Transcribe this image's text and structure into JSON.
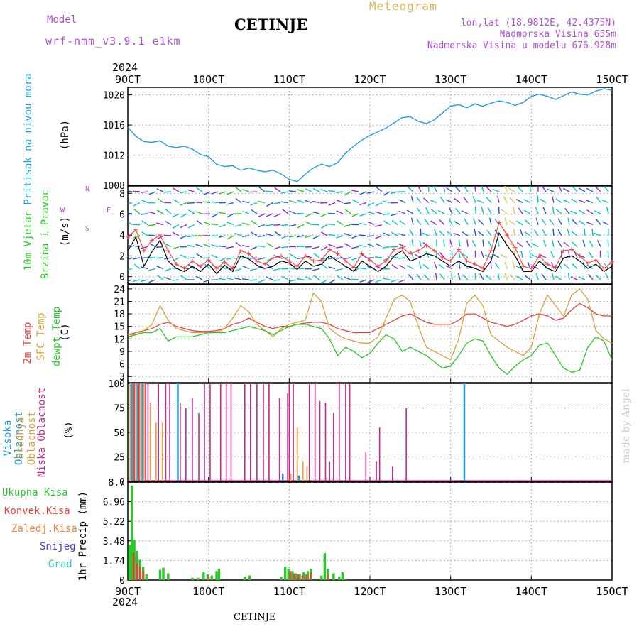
{
  "header": {
    "model_label": "Model",
    "model_name": "wrf-nmm_v3.9.1 e1km",
    "title": "CETINJE",
    "meteogram": "Meteogram",
    "lonlat": "lon,lat (18.9812E, 42.4375N)",
    "elevation": "Nadmorska Visina 655m",
    "model_elevation": "Nadmorska Visina u modelu 676.928m"
  },
  "footer": {
    "station": "CETINJE",
    "watermark": "made by Angel"
  },
  "colors": {
    "pressure": "#1ea0e6",
    "wind_green": "#28c828",
    "wind_cyan": "#00c8c8",
    "wind_blue": "#1e5adc",
    "wind_purple": "#8c28e6",
    "wind_yellow": "#d2c850",
    "wind_speed": "#000000",
    "gust": "#ff3c3c",
    "temp2m": "#f03c3c",
    "sfc_temp": "#dca03c",
    "dewpt": "#28c828",
    "cloud_high": "#1ea0e6",
    "cloud_mid": "#e6a03c",
    "cloud_low": "#c8288c",
    "rain_total": "#28c828",
    "rain_conv": "#f03c3c",
    "rain_frozen": "#f0823c",
    "snow": "#3c3ce6",
    "hail": "#28c8c8"
  },
  "chart_data": [
    {
      "type": "line",
      "title": "Pritisak na nivou mora",
      "ylabel": "(hPa)",
      "ylim": [
        1008,
        1021
      ],
      "yticks": [
        "1008",
        "1012",
        "1016",
        "1020"
      ],
      "top_axis_year": "2024",
      "x_ticks": [
        "9OCT",
        "10OCT",
        "11OCT",
        "12OCT",
        "13OCT",
        "14OCT",
        "15OCT"
      ],
      "grid": true,
      "x": [
        9.0,
        9.1,
        9.2,
        9.3,
        9.4,
        9.5,
        9.6,
        9.7,
        9.8,
        9.9,
        10.0,
        10.1,
        10.2,
        10.3,
        10.4,
        10.5,
        10.6,
        10.7,
        10.8,
        10.9,
        11.0,
        11.1,
        11.2,
        11.3,
        11.4,
        11.5,
        11.6,
        11.7,
        11.8,
        11.9,
        12.0,
        12.1,
        12.2,
        12.3,
        12.4,
        12.5,
        12.6,
        12.7,
        12.8,
        12.9,
        13.0,
        13.1,
        13.2,
        13.3,
        13.4,
        13.5,
        13.6,
        13.7,
        13.8,
        13.9,
        14.0,
        14.1,
        14.2,
        14.3,
        14.4,
        14.5,
        14.6,
        14.7,
        14.8,
        14.9,
        15.0
      ],
      "series": [
        {
          "name": "Pritisak na nivou mora",
          "values": [
            1015.7,
            1014.5,
            1013.8,
            1013.7,
            1013.9,
            1013.2,
            1013.0,
            1013.2,
            1012.8,
            1012.1,
            1011.8,
            1010.8,
            1010.5,
            1010.6,
            1010.0,
            1010.3,
            1010.0,
            1009.8,
            1010.0,
            1009.5,
            1008.8,
            1008.5,
            1009.5,
            1010.3,
            1010.8,
            1010.5,
            1011.0,
            1012.3,
            1013.2,
            1014.0,
            1014.6,
            1015.1,
            1015.6,
            1016.3,
            1017.0,
            1017.1,
            1016.5,
            1016.2,
            1016.7,
            1017.6,
            1018.5,
            1018.7,
            1018.3,
            1018.8,
            1018.5,
            1018.9,
            1019.2,
            1019.0,
            1018.6,
            1019.0,
            1019.8,
            1020.1,
            1019.8,
            1019.4,
            1019.9,
            1020.4,
            1020.1,
            1020.0,
            1020.5,
            1020.8,
            1020.6
          ]
        }
      ]
    },
    {
      "type": "line",
      "title": "10m Vjetar Brzina i Pravac",
      "series_labels": [
        "10m Vjetar",
        "Brzina i Pravac"
      ],
      "ylabel": "(m/s)",
      "ylim": [
        -0.7,
        8.7
      ],
      "yticks": [
        "0",
        "2",
        "4",
        "6",
        "8"
      ],
      "compass": [
        "N",
        "W",
        "E",
        "S"
      ],
      "x": [
        9.0,
        9.1,
        9.2,
        9.3,
        9.4,
        9.5,
        9.6,
        9.7,
        9.8,
        9.9,
        10.0,
        10.1,
        10.2,
        10.3,
        10.4,
        10.5,
        10.6,
        10.7,
        10.8,
        10.9,
        11.0,
        11.1,
        11.2,
        11.3,
        11.4,
        11.5,
        11.6,
        11.7,
        11.8,
        11.9,
        12.0,
        12.1,
        12.2,
        12.3,
        12.4,
        12.5,
        12.6,
        12.7,
        12.8,
        12.9,
        13.0,
        13.1,
        13.2,
        13.3,
        13.4,
        13.5,
        13.6,
        13.7,
        13.8,
        13.9,
        14.0,
        14.1,
        14.2,
        14.3,
        14.4,
        14.5,
        14.6,
        14.7,
        14.8,
        14.9,
        15.0
      ],
      "series": [
        {
          "name": "speed",
          "values": [
            2.5,
            3.8,
            1.0,
            2.4,
            3.5,
            1.5,
            0.8,
            0.5,
            1.0,
            0.5,
            1.2,
            0.3,
            1.1,
            0.5,
            2.0,
            1.7,
            1.1,
            0.8,
            1.0,
            1.5,
            1.3,
            0.7,
            1.5,
            1.0,
            1.2,
            2.0,
            1.5,
            1.0,
            0.5,
            1.5,
            1.0,
            0.5,
            1.0,
            2.0,
            2.5,
            1.5,
            1.8,
            2.2,
            2.0,
            1.5,
            1.0,
            1.5,
            1.0,
            0.8,
            0.5,
            1.5,
            4.2,
            3.0,
            2.0,
            0.5,
            0.5,
            1.5,
            0.8,
            0.5,
            1.8,
            2.0,
            1.5,
            0.8,
            1.2,
            0.5,
            1.0
          ]
        },
        {
          "name": "gust",
          "values": [
            3.8,
            4.5,
            2.5,
            3.5,
            4.0,
            2.5,
            1.2,
            0.8,
            1.5,
            1.0,
            1.6,
            0.8,
            1.4,
            0.8,
            2.5,
            2.2,
            1.5,
            1.2,
            1.8,
            2.0,
            1.5,
            1.0,
            2.0,
            1.5,
            1.6,
            2.6,
            2.2,
            1.5,
            0.9,
            2.2,
            1.6,
            1.0,
            1.5,
            2.6,
            2.8,
            2.2,
            2.5,
            3.0,
            2.5,
            1.8,
            1.5,
            2.6,
            1.5,
            1.2,
            0.8,
            2.5,
            5.2,
            4.0,
            2.8,
            1.0,
            0.8,
            2.0,
            1.2,
            0.9,
            2.5,
            2.6,
            2.0,
            1.3,
            1.6,
            0.8,
            1.4
          ]
        }
      ]
    },
    {
      "type": "line",
      "title": "2m Temp / SFC Temp / dewpt Temp",
      "series_labels": [
        "2m Temp",
        "SFC Temp",
        "dewpt Temp"
      ],
      "ylabel": "(C)",
      "ylim": [
        1.5,
        25
      ],
      "yticks": [
        "3",
        "6",
        "9",
        "12",
        "15",
        "18",
        "21",
        "24"
      ],
      "x": [
        9.0,
        9.1,
        9.2,
        9.3,
        9.4,
        9.5,
        9.6,
        9.7,
        9.8,
        9.9,
        10.0,
        10.1,
        10.2,
        10.3,
        10.4,
        10.5,
        10.6,
        10.7,
        10.8,
        10.9,
        11.0,
        11.1,
        11.2,
        11.3,
        11.4,
        11.5,
        11.6,
        11.7,
        11.8,
        11.9,
        12.0,
        12.1,
        12.2,
        12.3,
        12.4,
        12.5,
        12.6,
        12.7,
        12.8,
        12.9,
        13.0,
        13.1,
        13.2,
        13.3,
        13.4,
        13.5,
        13.6,
        13.7,
        13.8,
        13.9,
        14.0,
        14.1,
        14.2,
        14.3,
        14.4,
        14.5,
        14.6,
        14.7,
        14.8,
        14.9,
        15.0
      ],
      "series": [
        {
          "name": "2m Temp",
          "values": [
            13.0,
            13.5,
            14.0,
            14.5,
            15.5,
            16.0,
            15.0,
            14.5,
            14.0,
            13.8,
            13.8,
            14.0,
            14.5,
            15.5,
            16.0,
            17.0,
            16.0,
            15.0,
            14.5,
            15.0,
            15.0,
            15.5,
            15.8,
            16.0,
            16.0,
            15.5,
            14.5,
            14.0,
            13.5,
            13.5,
            13.5,
            14.5,
            15.5,
            16.5,
            17.5,
            18.0,
            17.0,
            16.0,
            15.5,
            15.5,
            15.5,
            16.5,
            18.0,
            18.0,
            17.0,
            16.0,
            15.5,
            15.0,
            15.5,
            16.5,
            17.5,
            18.0,
            17.5,
            16.5,
            17.0,
            19.0,
            20.5,
            19.5,
            18.0,
            17.5,
            17.5
          ]
        },
        {
          "name": "SFC Temp",
          "values": [
            13.0,
            13.0,
            14.0,
            15.5,
            20.0,
            16.5,
            14.5,
            14.0,
            13.5,
            13.5,
            13.5,
            13.5,
            14.5,
            17.0,
            20.0,
            18.5,
            15.5,
            14.0,
            12.5,
            14.5,
            15.5,
            16.0,
            16.5,
            23.0,
            21.0,
            14.5,
            13.0,
            12.0,
            11.5,
            11.0,
            11.0,
            12.5,
            17.0,
            21.5,
            22.5,
            21.0,
            15.0,
            10.0,
            9.0,
            8.0,
            7.0,
            12.0,
            20.5,
            22.5,
            20.0,
            13.0,
            11.5,
            10.0,
            9.0,
            8.0,
            10.0,
            18.0,
            22.5,
            20.0,
            17.5,
            22.5,
            24.0,
            21.5,
            14.0,
            12.0,
            11.0
          ]
        },
        {
          "name": "dewpt Temp",
          "values": [
            12.5,
            13.0,
            13.5,
            13.5,
            14.5,
            11.5,
            12.5,
            12.5,
            12.5,
            13.0,
            13.5,
            13.5,
            13.5,
            14.0,
            14.5,
            15.0,
            14.5,
            14.0,
            13.0,
            14.0,
            15.0,
            15.5,
            15.5,
            15.0,
            14.5,
            12.0,
            8.0,
            10.0,
            9.0,
            7.5,
            8.5,
            11.0,
            13.0,
            12.0,
            9.0,
            10.0,
            9.0,
            8.0,
            6.5,
            5.0,
            5.5,
            8.0,
            11.0,
            12.0,
            11.5,
            8.0,
            5.0,
            3.5,
            5.5,
            7.0,
            8.0,
            10.5,
            11.0,
            8.0,
            5.0,
            4.0,
            4.5,
            10.0,
            12.5,
            11.5,
            7.0
          ]
        }
      ]
    },
    {
      "type": "bar",
      "title": "Visoka Oblacnost / Srednja Oblacnost / Niska Oblacnost",
      "series_labels": [
        "Visoka Oblacnost",
        "Srednja Oblacnost",
        "Niska Oblacnost"
      ],
      "ylabel": "(%)",
      "ylim": [
        0,
        100
      ],
      "yticks": [
        "0",
        "25",
        "50",
        "75",
        "100"
      ],
      "series": [
        {
          "name": "Visoka Oblacnost",
          "x": [
            9.05,
            9.12,
            9.18,
            9.62,
            10.92,
            11.12,
            13.17
          ],
          "values": [
            100,
            100,
            100,
            100,
            8,
            6,
            100
          ]
        },
        {
          "name": "Srednja Oblacnost",
          "x": [
            9.03,
            9.07,
            9.1,
            9.13,
            9.16,
            9.2,
            9.28,
            9.35,
            9.43,
            11.02,
            11.1,
            11.17,
            11.22
          ],
          "values": [
            100,
            100,
            100,
            100,
            100,
            100,
            80,
            60,
            60,
            8,
            55,
            20,
            15
          ]
        },
        {
          "name": "Niska Oblacnost",
          "x": [
            9.08,
            9.14,
            9.22,
            9.25,
            9.38,
            9.47,
            9.52,
            9.65,
            9.72,
            9.8,
            9.88,
            9.95,
            10.02,
            10.15,
            10.22,
            10.28,
            10.45,
            10.52,
            10.6,
            10.68,
            10.75,
            10.88,
            10.98,
            11.0,
            11.05,
            11.25,
            11.32,
            11.38,
            11.45,
            11.5,
            11.55,
            11.62,
            11.7,
            11.75,
            11.95,
            12.08,
            12.12,
            12.28,
            12.45
          ],
          "values": [
            100,
            100,
            100,
            100,
            100,
            100,
            100,
            80,
            75,
            85,
            70,
            100,
            100,
            100,
            100,
            100,
            100,
            100,
            100,
            100,
            100,
            85,
            90,
            100,
            100,
            100,
            100,
            82,
            80,
            20,
            70,
            100,
            100,
            100,
            30,
            20,
            55,
            15,
            75
          ]
        }
      ]
    },
    {
      "type": "bar",
      "title": "1hr Precip",
      "series_labels": [
        "Ukupna Kisa",
        "Konvek.Kisa",
        "Zaledj.Kisa",
        "Snijeg",
        "Grad"
      ],
      "ylabel": "1hr Precip (mm)",
      "ylim": [
        0,
        8.7
      ],
      "yticks": [
        "0",
        "1.74",
        "3.48",
        "5.22",
        "6.96",
        "8.7"
      ],
      "bottom_axis_year": "2024",
      "series": [
        {
          "name": "Ukupna Kisa",
          "x": [
            9.02,
            9.05,
            9.08,
            9.11,
            9.15,
            9.19,
            9.23,
            9.4,
            9.44,
            9.5,
            9.8,
            9.87,
            9.94,
            9.99,
            10.04,
            10.1,
            10.13,
            10.45,
            10.51,
            10.9,
            10.95,
            10.99,
            11.04,
            11.08,
            11.13,
            11.18,
            11.23,
            11.27,
            11.4,
            11.44,
            11.48,
            11.55,
            11.62,
            11.66,
            11.7
          ],
          "values": [
            3.1,
            8.4,
            3.6,
            2.6,
            1.8,
            1.2,
            0.5,
            0.9,
            1.1,
            0.6,
            0.2,
            0.2,
            0.7,
            0.5,
            0.4,
            0.8,
            1.0,
            0.3,
            0.4,
            0.3,
            1.2,
            1.0,
            0.8,
            0.6,
            0.5,
            0.7,
            0.8,
            1.0,
            0.4,
            2.4,
            1.0,
            0.6,
            0.3,
            0.7,
            0.1
          ]
        },
        {
          "name": "Konvek.Kisa",
          "x": [
            9.06,
            9.1,
            9.14,
            9.18,
            9.99,
            11.0,
            11.05,
            11.1,
            11.15,
            11.2,
            11.25,
            11.46
          ],
          "values": [
            2.4,
            1.5,
            1.2,
            0.8,
            0.3,
            0.8,
            0.6,
            0.5,
            0.4,
            0.5,
            0.7,
            0.5
          ]
        }
      ]
    }
  ]
}
